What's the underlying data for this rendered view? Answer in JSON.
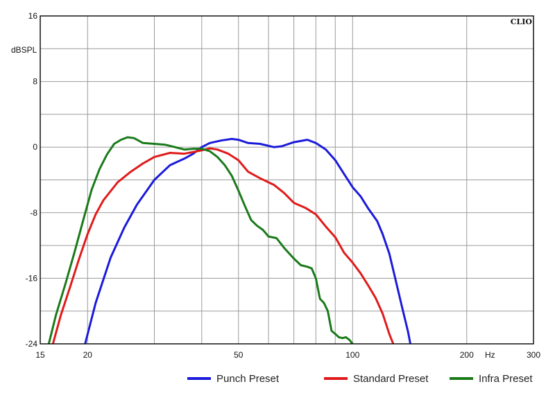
{
  "chart_data": {
    "type": "line",
    "brand": "CLIO",
    "ylabel": "dBSPL",
    "xunit": "Hz",
    "xscale": "log",
    "xlim": [
      15,
      300
    ],
    "ylim": [
      -24,
      16
    ],
    "grid": true,
    "legend_position": "bottom",
    "xticks": [
      {
        "value": 15,
        "label": "15"
      },
      {
        "value": 20,
        "label": "20"
      },
      {
        "value": 50,
        "label": "50"
      },
      {
        "value": 100,
        "label": "100"
      },
      {
        "value": 200,
        "label": "200"
      },
      {
        "value": 300,
        "label": "300"
      }
    ],
    "xgrid": [
      20,
      30,
      40,
      50,
      60,
      70,
      80,
      90,
      100,
      200
    ],
    "yticks": [
      {
        "value": 16,
        "label": "16"
      },
      {
        "value": 8,
        "label": "8"
      },
      {
        "value": 0,
        "label": "0"
      },
      {
        "value": -8,
        "label": "-8"
      },
      {
        "value": -16,
        "label": "-16"
      },
      {
        "value": -24,
        "label": "-24"
      }
    ],
    "ygrid": [
      12,
      8,
      4,
      0,
      -4,
      -8,
      -12,
      -16,
      -20
    ],
    "series": [
      {
        "name": "Punch Preset",
        "color": "#1a1adb",
        "x": [
          19.7,
          21,
          23,
          25,
          27,
          30,
          33,
          36,
          38,
          40,
          42,
          45,
          48,
          50,
          53,
          57,
          62,
          65,
          70,
          76,
          80,
          85,
          90,
          95,
          100,
          105,
          110,
          116,
          120,
          125,
          130,
          135,
          140,
          142
        ],
        "y": [
          -24,
          -19,
          -13.5,
          -9.8,
          -7,
          -4,
          -2.2,
          -1.4,
          -0.8,
          0,
          0.5,
          0.8,
          1,
          0.9,
          0.5,
          0.4,
          0,
          0.1,
          0.6,
          0.9,
          0.5,
          -0.3,
          -1.6,
          -3.3,
          -4.9,
          -6,
          -7.5,
          -9,
          -10.6,
          -13,
          -16.3,
          -19.5,
          -22.5,
          -24
        ]
      },
      {
        "name": "Standard Preset",
        "color": "#e01a1a",
        "x": [
          16.2,
          17,
          18,
          19,
          20,
          21,
          22,
          24,
          26,
          28,
          30,
          33,
          36,
          40,
          42,
          44,
          47,
          50,
          53,
          57,
          62,
          66,
          70,
          75,
          80,
          85,
          90,
          95,
          100,
          105,
          110,
          115,
          120,
          125,
          128
        ],
        "y": [
          -24,
          -20.5,
          -17,
          -13.6,
          -10.6,
          -8.2,
          -6.5,
          -4.3,
          -3,
          -2,
          -1.2,
          -0.7,
          -0.8,
          -0.4,
          -0.15,
          -0.3,
          -0.8,
          -1.6,
          -3,
          -3.8,
          -4.6,
          -5.6,
          -6.8,
          -7.4,
          -8.2,
          -9.7,
          -11,
          -12.9,
          -14.1,
          -15.4,
          -16.9,
          -18.4,
          -20.3,
          -22.8,
          -24
        ]
      },
      {
        "name": "Infra Preset",
        "color": "#1a7a1a",
        "x": [
          15.8,
          16.5,
          17.5,
          18.5,
          19.5,
          20.5,
          21.5,
          22.5,
          23.5,
          24.5,
          25.5,
          26.5,
          28,
          30,
          32,
          34,
          36,
          38,
          40,
          42,
          44,
          46,
          48,
          50,
          52,
          54,
          56,
          58,
          60,
          63,
          66,
          70,
          73,
          76,
          78,
          80,
          82,
          84,
          86,
          88,
          90,
          92,
          94,
          96,
          98,
          100
        ],
        "y": [
          -24,
          -20.5,
          -16.6,
          -12.7,
          -8.8,
          -5.2,
          -2.7,
          -0.9,
          0.4,
          0.9,
          1.2,
          1.1,
          0.5,
          0.4,
          0.3,
          0,
          -0.3,
          -0.2,
          -0.2,
          -0.5,
          -1.2,
          -2.2,
          -3.5,
          -5.3,
          -7.2,
          -8.9,
          -9.6,
          -10.1,
          -10.9,
          -11.1,
          -12.3,
          -13.6,
          -14.4,
          -14.6,
          -14.8,
          -16,
          -18.5,
          -19,
          -20,
          -22.4,
          -22.8,
          -23.2,
          -23.3,
          -23.2,
          -23.5,
          -24
        ]
      }
    ]
  }
}
